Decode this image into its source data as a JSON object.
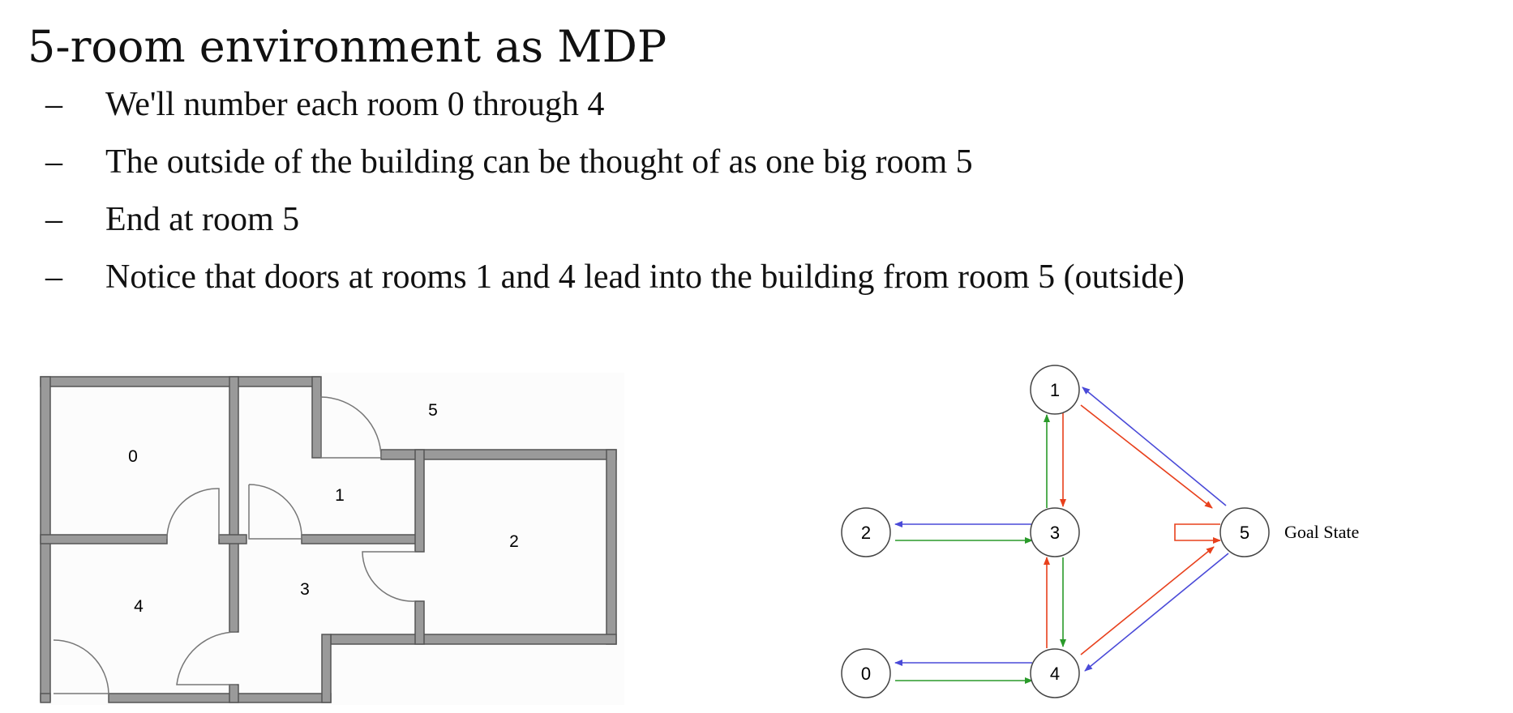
{
  "slide": {
    "title": "5-room environment as MDP",
    "bullets": [
      {
        "marker": "–",
        "text": "We'll number each room 0 through 4"
      },
      {
        "marker": "–",
        "text": "The outside of the building can be thought of as one big room 5"
      },
      {
        "marker": "–",
        "text": "End at room 5"
      },
      {
        "marker": "–",
        "text": "Notice that doors at rooms 1 and 4 lead into the building from room 5 (outside)"
      }
    ]
  },
  "floorplan": {
    "room_labels": [
      "0",
      "1",
      "2",
      "3",
      "4",
      "5"
    ]
  },
  "graph": {
    "nodes": [
      "0",
      "1",
      "2",
      "3",
      "4",
      "5"
    ],
    "goal_label": "Goal State",
    "colors": {
      "blue": "#4a4ad8",
      "green": "#2a9a2a",
      "red": "#e8401c"
    },
    "edges": [
      {
        "from": "3",
        "to": "2",
        "color": "blue"
      },
      {
        "from": "2",
        "to": "3",
        "color": "green"
      },
      {
        "from": "3",
        "to": "1",
        "color": "green"
      },
      {
        "from": "1",
        "to": "3",
        "color": "red"
      },
      {
        "from": "1",
        "to": "5",
        "color": "red"
      },
      {
        "from": "5",
        "to": "1",
        "color": "blue"
      },
      {
        "from": "3",
        "to": "4",
        "color": "green"
      },
      {
        "from": "4",
        "to": "3",
        "color": "red"
      },
      {
        "from": "4",
        "to": "5",
        "color": "red"
      },
      {
        "from": "5",
        "to": "4",
        "color": "blue"
      },
      {
        "from": "4",
        "to": "0",
        "color": "blue"
      },
      {
        "from": "0",
        "to": "4",
        "color": "green"
      },
      {
        "from": "5",
        "to": "5",
        "color": "red"
      }
    ]
  }
}
